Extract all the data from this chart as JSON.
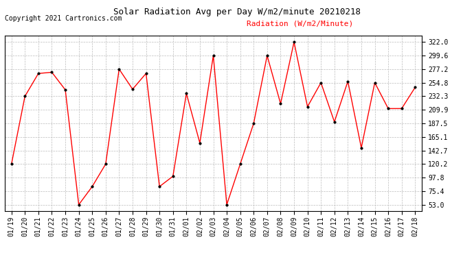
{
  "title": "Solar Radiation Avg per Day W/m2/minute 20210218",
  "copyright": "Copyright 2021 Cartronics.com",
  "legend_label": "Radiation (W/m2/Minute)",
  "dates": [
    "01/19",
    "01/20",
    "01/21",
    "01/22",
    "01/23",
    "01/24",
    "01/25",
    "01/26",
    "01/27",
    "01/28",
    "01/29",
    "01/30",
    "01/31",
    "02/01",
    "02/02",
    "02/03",
    "02/04",
    "02/05",
    "02/06",
    "02/07",
    "02/08",
    "02/09",
    "02/10",
    "02/11",
    "02/12",
    "02/13",
    "02/14",
    "02/15",
    "02/16",
    "02/17",
    "02/18"
  ],
  "values": [
    120.2,
    232.3,
    270.0,
    272.0,
    243.0,
    53.0,
    83.0,
    120.2,
    277.2,
    244.0,
    270.0,
    83.0,
    100.0,
    237.0,
    155.0,
    299.6,
    53.0,
    120.2,
    187.5,
    299.6,
    220.0,
    322.0,
    215.0,
    254.8,
    190.0,
    257.0,
    147.0,
    254.8,
    212.0,
    212.0,
    247.0
  ],
  "y_ticks": [
    53.0,
    75.4,
    97.8,
    120.2,
    142.7,
    165.1,
    187.5,
    209.9,
    232.3,
    254.8,
    277.2,
    299.6,
    322.0
  ],
  "ylim": [
    43.0,
    332.0
  ],
  "line_color": "red",
  "marker_color": "black",
  "title_fontsize": 9,
  "copyright_fontsize": 7,
  "legend_fontsize": 8,
  "tick_fontsize": 7,
  "background_color": "#ffffff",
  "grid_color": "#bbbbbb"
}
